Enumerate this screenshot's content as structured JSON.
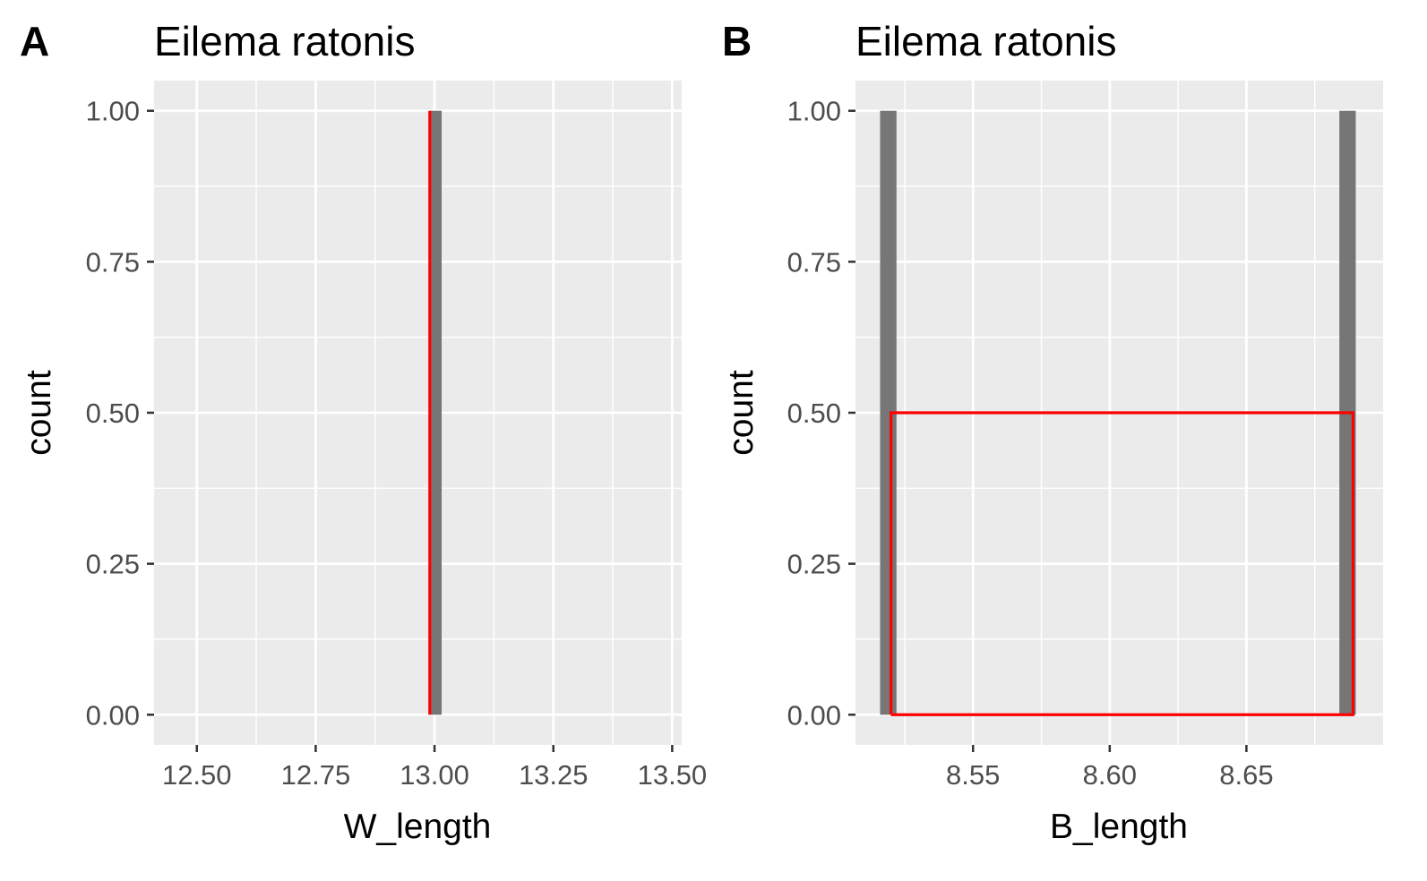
{
  "chart_data": [
    {
      "panel_label": "A",
      "type": "bar",
      "title": "Eilema ratonis",
      "xlabel": "W_length",
      "ylabel": "count",
      "xlim": [
        12.41,
        13.52
      ],
      "ylim": [
        -0.05,
        1.05
      ],
      "x_ticks": [
        12.5,
        12.75,
        13.0,
        13.25,
        13.5
      ],
      "x_tick_labels": [
        "12.50",
        "12.75",
        "13.00",
        "13.25",
        "13.50"
      ],
      "y_ticks": [
        0,
        0.25,
        0.5,
        0.75,
        1.0
      ],
      "y_tick_labels": [
        "0.00",
        "0.25",
        "0.50",
        "0.75",
        "1.00"
      ],
      "grid": true,
      "histogram_bars": [
        {
          "xmin": 12.99,
          "xmax": 13.015,
          "count": 1
        }
      ],
      "overlay": {
        "color": "#ff0000",
        "points": [
          [
            12.99,
            0
          ],
          [
            12.99,
            1
          ]
        ]
      },
      "colors": {
        "bar": "#767676",
        "panel_bg": "#ebebeb",
        "grid": "#ffffff",
        "overlay": "#ff0000"
      }
    },
    {
      "panel_label": "B",
      "type": "bar",
      "title": "Eilema ratonis",
      "xlabel": "B_length",
      "ylabel": "count",
      "xlim": [
        8.507,
        8.7
      ],
      "ylim": [
        -0.05,
        1.05
      ],
      "x_ticks": [
        8.55,
        8.6,
        8.65
      ],
      "x_tick_labels": [
        "8.55",
        "8.60",
        "8.65"
      ],
      "y_ticks": [
        0,
        0.25,
        0.5,
        0.75,
        1.0
      ],
      "y_tick_labels": [
        "0.00",
        "0.25",
        "0.50",
        "0.75",
        "1.00"
      ],
      "grid": true,
      "histogram_bars": [
        {
          "xmin": 8.516,
          "xmax": 8.522,
          "count": 1
        },
        {
          "xmin": 8.684,
          "xmax": 8.69,
          "count": 1
        }
      ],
      "overlay": {
        "color": "#ff0000",
        "points": [
          [
            8.52,
            0
          ],
          [
            8.52,
            0.5
          ],
          [
            8.689,
            0.5
          ],
          [
            8.689,
            0
          ],
          [
            8.52,
            0
          ]
        ]
      },
      "colors": {
        "bar": "#767676",
        "panel_bg": "#ebebeb",
        "grid": "#ffffff",
        "overlay": "#ff0000"
      }
    }
  ]
}
